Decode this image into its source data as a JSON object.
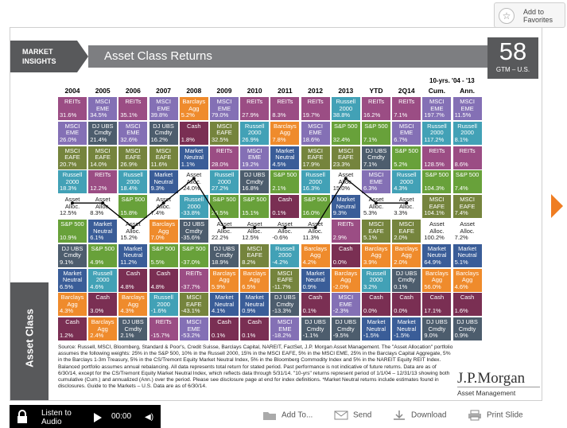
{
  "favorites": {
    "label_line1": "Add to",
    "label_line2": "Favorites",
    "icon": "star-plus-icon"
  },
  "header": {
    "section_line1": "MARKET",
    "section_line2": "INSIGHTS",
    "title": "Asset Class Returns",
    "page_number": "58",
    "page_sub": "GTM – U.S."
  },
  "side_label": "Asset Class",
  "columns": {
    "years": [
      "2004",
      "2005",
      "2006",
      "2007",
      "2008",
      "2009",
      "2010",
      "2011",
      "2012",
      "2013",
      "YTD",
      "2Q14",
      "Cum.",
      "Ann."
    ],
    "span_label": "10-yrs. '04 - '13"
  },
  "legend_colors": {
    "REITs": "#9b4d84",
    "MSCI EME": "#8470b5",
    "MSCI EAFE": "#75843d",
    "Russell 2000": "#42a1b6",
    "Asset Alloc.": "#ffffff",
    "S&P 500": "#68a13a",
    "DJ UBS Cmdty": "#4d5d6d",
    "Market Neutral": "#3a5d98",
    "Barclays Agg": "#ef8b2c",
    "Cash": "#7a2f53"
  },
  "table": {
    "rows": [
      [
        [
          "REITs",
          "31.6%"
        ],
        [
          "MSCI EME",
          "34.5%"
        ],
        [
          "REITs",
          "35.1%"
        ],
        [
          "MSCI EME",
          "39.8%"
        ],
        [
          "Barclays Agg",
          "5.2%"
        ],
        [
          "MSCI EME",
          "79.0%"
        ],
        [
          "REITs",
          "27.9%"
        ],
        [
          "REITs",
          "8.3%"
        ],
        [
          "REITs",
          "19.7%"
        ],
        [
          "Russell 2000",
          "38.8%"
        ],
        [
          "REITs",
          "16.2%"
        ],
        [
          "REITs",
          "7.1%"
        ],
        [
          "MSCI EME",
          "197.7%"
        ],
        [
          "MSCI EME",
          "11.5%"
        ]
      ],
      [
        [
          "MSCI EME",
          "26.0%"
        ],
        [
          "DJ UBS Cmdty",
          "21.4%"
        ],
        [
          "MSCI EME",
          "32.6%"
        ],
        [
          "DJ UBS Cmdty",
          "16.2%"
        ],
        [
          "Cash",
          "1.8%"
        ],
        [
          "MSCI EAFE",
          "32.5%"
        ],
        [
          "Russell 2000",
          "26.9%"
        ],
        [
          "Barclays Agg",
          "7.8%"
        ],
        [
          "MSCI EME",
          "18.6%"
        ],
        [
          "S&P 500",
          "32.4%"
        ],
        [
          "S&P 500",
          "7.1%"
        ],
        [
          "MSCI EME",
          "6.7%"
        ],
        [
          "Russell 2000",
          "117.2%"
        ],
        [
          "Russell 2000",
          "8.1%"
        ]
      ],
      [
        [
          "MSCI EAFE",
          "20.7%"
        ],
        [
          "MSCI EAFE",
          "14.0%"
        ],
        [
          "MSCI EAFE",
          "26.9%"
        ],
        [
          "MSCI EAFE",
          "11.6%"
        ],
        [
          "Market Neutral",
          "1.1%"
        ],
        [
          "REITs",
          "28.0%"
        ],
        [
          "MSCI EME",
          "19.2%"
        ],
        [
          "Market Neutral",
          "4.5%"
        ],
        [
          "MSCI EAFE",
          "17.9%"
        ],
        [
          "MSCI EAFE",
          "23.3%"
        ],
        [
          "DJ UBS Cmdty",
          "7.1%"
        ],
        [
          "S&P 500",
          "5.2%"
        ],
        [
          "REITs",
          "128.5%"
        ],
        [
          "REITs",
          "8.6%"
        ]
      ],
      [
        [
          "Russell 2000",
          "18.3%"
        ],
        [
          "REITs",
          "12.2%"
        ],
        [
          "Russell 2000",
          "18.4%"
        ],
        [
          "Market Neutral",
          "9.3%"
        ],
        [
          "Asset Alloc.",
          "-24.0%"
        ],
        [
          "Russell 2000",
          "27.2%"
        ],
        [
          "DJ UBS Cmdty",
          "16.8%"
        ],
        [
          "S&P 500",
          "2.1%"
        ],
        [
          "Russell 2000",
          "16.3%"
        ],
        [
          "Asset Alloc.",
          "15.0%"
        ],
        [
          "MSCI EME",
          "6.3%"
        ],
        [
          "Russell 2000",
          "4.3%"
        ],
        [
          "S&P 500",
          "104.3%"
        ],
        [
          "S&P 500",
          "7.4%"
        ]
      ],
      [
        [
          "Asset Alloc.",
          "12.5%"
        ],
        [
          "Asset Alloc.",
          "8.3%"
        ],
        [
          "S&P 500",
          "15.8%"
        ],
        [
          "Asset Alloc.",
          "7.4%"
        ],
        [
          "Russell 2000",
          "-33.8%"
        ],
        [
          "S&P 500",
          "26.5%"
        ],
        [
          "S&P 500",
          "15.1%"
        ],
        [
          "Cash",
          "0.1%"
        ],
        [
          "S&P 500",
          "16.0%"
        ],
        [
          "Market Neutral",
          "9.3%"
        ],
        [
          "Asset Alloc.",
          "5.3%"
        ],
        [
          "Asset Alloc.",
          "3.3%"
        ],
        [
          "MSCI EAFE",
          "104.1%"
        ],
        [
          "MSCI EAFE",
          "7.4%"
        ]
      ],
      [
        [
          "S&P 500",
          "10.9%"
        ],
        [
          "Market Neutral",
          "6.1%"
        ],
        [
          "Asset Alloc.",
          "15.2%"
        ],
        [
          "Barclays Agg",
          "7.0%"
        ],
        [
          "DJ UBS Cmdty",
          "-35.6%"
        ],
        [
          "Asset Alloc.",
          "22.2%"
        ],
        [
          "Asset Alloc.",
          "12.5%"
        ],
        [
          "Asset Alloc.",
          "-0.6%"
        ],
        [
          "Asset Alloc.",
          "11.3%"
        ],
        [
          "REITs",
          "2.9%"
        ],
        [
          "MSCI EAFE",
          "5.1%"
        ],
        [
          "MSCI EAFE",
          "2.0%"
        ],
        [
          "Asset Alloc.",
          "100.2%"
        ],
        [
          "Asset Alloc.",
          "7.2%"
        ]
      ],
      [
        [
          "DJ UBS Cmdty",
          "9.1%"
        ],
        [
          "S&P 500",
          "4.9%"
        ],
        [
          "Market Neutral",
          "11.2%"
        ],
        [
          "S&P 500",
          "5.5%"
        ],
        [
          "S&P 500",
          "-37.0%"
        ],
        [
          "DJ UBS Cmdty",
          "18.9%"
        ],
        [
          "MSCI EAFE",
          "8.2%"
        ],
        [
          "Russell 2000",
          "-4.2%"
        ],
        [
          "Barclays Agg",
          "4.2%"
        ],
        [
          "Cash",
          "0.0%"
        ],
        [
          "Barclays Agg",
          "3.9%"
        ],
        [
          "Barclays Agg",
          "2.0%"
        ],
        [
          "Market Neutral",
          "64.9%"
        ],
        [
          "Market Neutral",
          "5.1%"
        ]
      ],
      [
        [
          "Market Neutral",
          "6.5%"
        ],
        [
          "Russell 2000",
          "4.6%"
        ],
        [
          "Cash",
          "4.8%"
        ],
        [
          "Cash",
          "4.8%"
        ],
        [
          "REITs",
          "-37.7%"
        ],
        [
          "Barclays Agg",
          "5.9%"
        ],
        [
          "Barclays Agg",
          "6.5%"
        ],
        [
          "MSCI EAFE",
          "-11.7%"
        ],
        [
          "Market Neutral",
          "0.9%"
        ],
        [
          "Barclays Agg",
          "-2.0%"
        ],
        [
          "Russell 2000",
          "3.2%"
        ],
        [
          "DJ UBS Cmdty",
          "0.1%"
        ],
        [
          "Barclays Agg",
          "56.0%"
        ],
        [
          "Barclays Agg",
          "4.6%"
        ]
      ],
      [
        [
          "Barclays Agg",
          "4.3%"
        ],
        [
          "Cash",
          "3.0%"
        ],
        [
          "Barclays Agg",
          "4.3%"
        ],
        [
          "Russell 2000",
          "-1.6%"
        ],
        [
          "MSCI EAFE",
          "-43.1%"
        ],
        [
          "Market Neutral",
          "4.1%"
        ],
        [
          "Market Neutral",
          "0.9%"
        ],
        [
          "DJ UBS Cmdty",
          "-13.3%"
        ],
        [
          "Cash",
          "0.1%"
        ],
        [
          "MSCI EME",
          "-2.3%"
        ],
        [
          "Cash",
          "0.0%"
        ],
        [
          "Cash",
          "0.0%"
        ],
        [
          "Cash",
          "17.1%"
        ],
        [
          "Cash",
          "1.6%"
        ]
      ],
      [
        [
          "Cash",
          "1.2%"
        ],
        [
          "Barclays Agg",
          "2.4%"
        ],
        [
          "DJ UBS Cmdty",
          "2.1%"
        ],
        [
          "REITs",
          "-15.7%"
        ],
        [
          "MSCI EME",
          "-53.2%"
        ],
        [
          "Cash",
          "0.1%"
        ],
        [
          "Cash",
          "0.1%"
        ],
        [
          "MSCI EME",
          "-18.2%"
        ],
        [
          "DJ UBS Cmdty",
          "-1.1%"
        ],
        [
          "DJ UBS Cmdty",
          "-9.5%"
        ],
        [
          "Market Neutral",
          "-1.5%"
        ],
        [
          "Market Neutral",
          "-1.5%"
        ],
        [
          "DJ UBS Cmdty",
          "9.0%"
        ],
        [
          "DJ UBS Cmdty",
          "0.9%"
        ]
      ]
    ]
  },
  "footnote": "Source: Russell, MSCI, Bloomberg, Standard & Poor's, Credit Suisse, Barclays Capital, NAREIT, FactSet, J.P. Morgan Asset Management. The \"Asset Allocation\" portfolio assumes the following weights: 25% in the S&P 500, 10% in the Russell 2000, 15% in the MSCI EAFE, 5% in the MSCI EME, 25% in the Barclays Capital Aggregate, 5% in the Barclays 1-3m Treasury, 5% in the CS/Tremont Equity Market Neutral Index, 5% in the Bloomberg Commodity Index and 5% in the NAREIT Equity REIT Index. Balanced portfolio assumes annual rebalancing. All data represents total return for stated period. Past performance is not indicative of future returns. Data are as of 6/30/14, except for the CS/Tremont Equity Market Neutral Index, which reflects data through 5/31/14. \"10-yrs\" returns represent period of 1/1/04 – 12/31/13 showing both cumulative (Cum.) and annualized (Ann.) over the period. Please see disclosure page at end for index definitions. *Market Neutral returns include estimates found in disclosures. Guide to the Markets – U.S. Data are as of 6/30/14.",
  "brand": {
    "line1": "J.P.Morgan",
    "line2": "Asset Management"
  },
  "player": {
    "label_line1": "Listen to",
    "label_line2": "Audio",
    "time": "00:00"
  },
  "toolbar": {
    "add_to": "Add To...",
    "send": "Send",
    "download": "Download",
    "print": "Print Slide"
  }
}
